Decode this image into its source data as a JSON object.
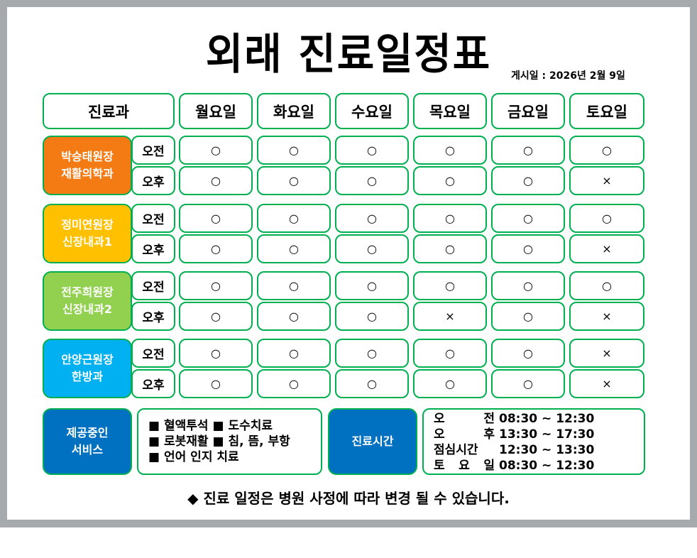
{
  "title": "외래 진료일정표",
  "posted": "게시일 : 2026년 2월 9일",
  "header": {
    "dept": "진료과",
    "days": [
      "월요일",
      "화요일",
      "수요일",
      "목요일",
      "금요일",
      "토요일"
    ]
  },
  "colors": {
    "border": "#00b050",
    "service_blue": "#0070c0"
  },
  "doctors": [
    {
      "name": "박승태원장",
      "dept": "재활의학과",
      "color": "#f47a14",
      "sessions": [
        {
          "label": "오전",
          "marks": [
            "○",
            "○",
            "○",
            "○",
            "○",
            "○"
          ]
        },
        {
          "label": "오후",
          "marks": [
            "○",
            "○",
            "○",
            "○",
            "○",
            "×"
          ]
        }
      ]
    },
    {
      "name": "정미연원장",
      "dept": "신장내과1",
      "color": "#ffc000",
      "sessions": [
        {
          "label": "오전",
          "marks": [
            "○",
            "○",
            "○",
            "○",
            "○",
            "○"
          ]
        },
        {
          "label": "오후",
          "marks": [
            "○",
            "○",
            "○",
            "○",
            "○",
            "×"
          ]
        }
      ]
    },
    {
      "name": "전주희원장",
      "dept": "신장내과2",
      "color": "#92d050",
      "sessions": [
        {
          "label": "오전",
          "marks": [
            "○",
            "○",
            "○",
            "○",
            "○",
            "○"
          ]
        },
        {
          "label": "오후",
          "marks": [
            "○",
            "○",
            "○",
            "×",
            "○",
            "×"
          ]
        }
      ]
    },
    {
      "name": "안양근원장",
      "dept": "한방과",
      "color": "#00b0f0",
      "sessions": [
        {
          "label": "오전",
          "marks": [
            "○",
            "○",
            "○",
            "○",
            "○",
            "×"
          ]
        },
        {
          "label": "오후",
          "marks": [
            "○",
            "○",
            "○",
            "○",
            "○",
            "×"
          ]
        }
      ]
    }
  ],
  "services": {
    "label_line1": "제공중인",
    "label_line2": "서비스",
    "lines": [
      "■ 혈액투석 ■ 도수치료",
      "■ 로봇재활 ■ 침, 뜸, 부항",
      "■ 언어 인지 치료"
    ]
  },
  "hours": {
    "label": "진료시간",
    "rows": [
      {
        "k": [
          "오",
          "전"
        ],
        "v": "08:30 ~ 12:30"
      },
      {
        "k": [
          "오",
          "후"
        ],
        "v": "13:30 ~ 17:30"
      },
      {
        "k": [
          "점심시간"
        ],
        "v": "12:30 ~ 13:30"
      },
      {
        "k": [
          "토",
          "요",
          "일"
        ],
        "v": "08:30 ~ 12:30"
      }
    ]
  },
  "note": "◆ 진료 일정은 병원 사정에 따라 변경 될 수 있습니다."
}
